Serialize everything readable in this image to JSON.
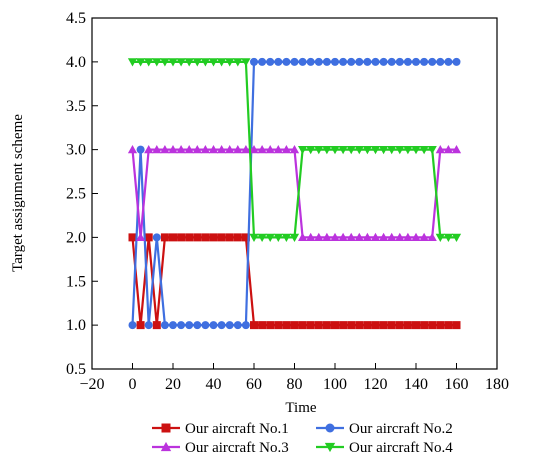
{
  "chart_data": {
    "type": "line",
    "title": "",
    "xlabel": "Time",
    "ylabel": "Target assignment scheme",
    "xlim": [
      -20,
      180
    ],
    "ylim": [
      0.5,
      4.5
    ],
    "xticks": [
      -20,
      0,
      20,
      40,
      60,
      80,
      100,
      120,
      140,
      160,
      180
    ],
    "yticks": [
      0.5,
      1.0,
      1.5,
      2.0,
      2.5,
      3.0,
      3.5,
      4.0,
      4.5
    ],
    "x_tick_labels": [
      "−20",
      "0",
      "20",
      "40",
      "60",
      "80",
      "100",
      "120",
      "140",
      "160",
      "180"
    ],
    "y_tick_labels": [
      "0.5",
      "1.0",
      "1.5",
      "2.0",
      "2.5",
      "3.0",
      "3.5",
      "4.0",
      "4.5"
    ],
    "grid": false,
    "legend_position": "bottom",
    "x": [
      0,
      4,
      8,
      12,
      16,
      20,
      24,
      28,
      32,
      36,
      40,
      44,
      48,
      52,
      56,
      60,
      64,
      68,
      72,
      76,
      80,
      84,
      88,
      92,
      96,
      100,
      104,
      108,
      112,
      116,
      120,
      124,
      128,
      132,
      136,
      140,
      144,
      148,
      152,
      156,
      160
    ],
    "series": [
      {
        "name": "Our aircraft No.1",
        "color": "#cc1111",
        "marker": "square",
        "values": [
          2,
          1,
          2,
          1,
          2,
          2,
          2,
          2,
          2,
          2,
          2,
          2,
          2,
          2,
          2,
          1,
          1,
          1,
          1,
          1,
          1,
          1,
          1,
          1,
          1,
          1,
          1,
          1,
          1,
          1,
          1,
          1,
          1,
          1,
          1,
          1,
          1,
          1,
          1,
          1,
          1
        ]
      },
      {
        "name": "Our aircraft No.2",
        "color": "#3f6fe0",
        "marker": "circle",
        "values": [
          1,
          3,
          1,
          2,
          1,
          1,
          1,
          1,
          1,
          1,
          1,
          1,
          1,
          1,
          1,
          4,
          4,
          4,
          4,
          4,
          4,
          4,
          4,
          4,
          4,
          4,
          4,
          4,
          4,
          4,
          4,
          4,
          4,
          4,
          4,
          4,
          4,
          4,
          4,
          4,
          4
        ]
      },
      {
        "name": "Our aircraft No.3",
        "color": "#bb33dd",
        "marker": "triangle-up",
        "values": [
          3,
          2,
          3,
          3,
          3,
          3,
          3,
          3,
          3,
          3,
          3,
          3,
          3,
          3,
          3,
          3,
          3,
          3,
          3,
          3,
          3,
          2,
          2,
          2,
          2,
          2,
          2,
          2,
          2,
          2,
          2,
          2,
          2,
          2,
          2,
          2,
          2,
          2,
          3,
          3,
          3
        ]
      },
      {
        "name": "Our aircraft No.4",
        "color": "#22cc22",
        "marker": "triangle-down",
        "values": [
          4,
          4,
          4,
          4,
          4,
          4,
          4,
          4,
          4,
          4,
          4,
          4,
          4,
          4,
          4,
          2,
          2,
          2,
          2,
          2,
          2,
          3,
          3,
          3,
          3,
          3,
          3,
          3,
          3,
          3,
          3,
          3,
          3,
          3,
          3,
          3,
          3,
          3,
          2,
          2,
          2
        ]
      }
    ]
  }
}
